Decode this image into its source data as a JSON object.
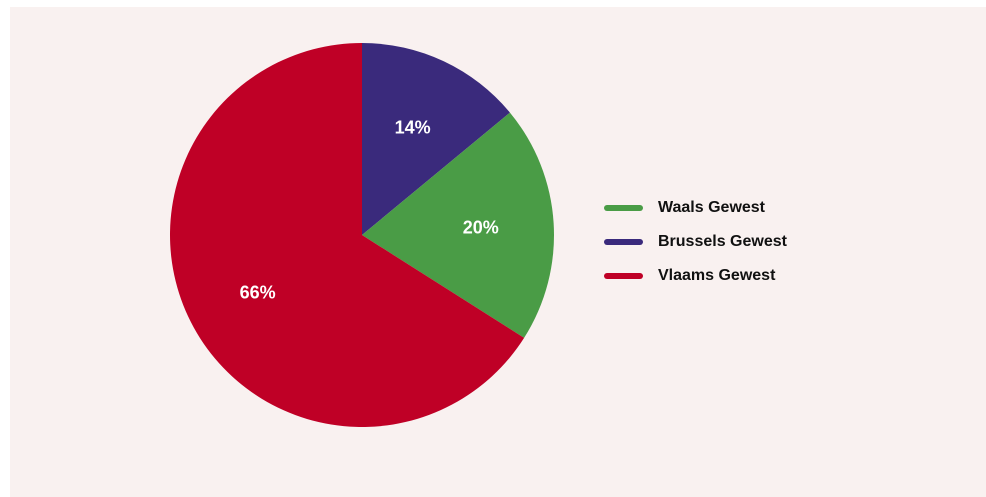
{
  "chart_data": {
    "type": "pie",
    "slices": [
      {
        "name": "Brussels Gewest",
        "value": 14,
        "label": "14%",
        "color": "#3a2a7c"
      },
      {
        "name": "Waals Gewest",
        "value": 20,
        "label": "20%",
        "color": "#4a9c46"
      },
      {
        "name": "Vlaams Gewest",
        "value": 66,
        "label": "66%",
        "color": "#bf0026"
      }
    ],
    "legend": {
      "placement": "right",
      "items": [
        {
          "label": "Waals Gewest",
          "color": "#4a9c46"
        },
        {
          "label": "Brussels Gewest",
          "color": "#3a2a7c"
        },
        {
          "label": "Vlaams Gewest",
          "color": "#bf0026"
        }
      ]
    },
    "start_angle": "12 o'clock",
    "direction": "clockwise",
    "background_color": "#f9f1f0"
  }
}
